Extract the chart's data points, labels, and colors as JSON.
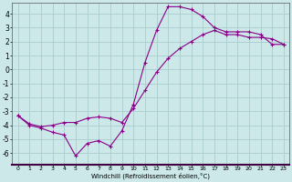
{
  "xlabel": "Windchill (Refroidissement éolien,°C)",
  "background_color": "#cce8e8",
  "grid_color": "#aacccc",
  "line_color": "#880088",
  "line1_x": [
    0,
    1,
    2,
    3,
    4,
    5,
    6,
    7,
    8,
    9,
    10,
    11,
    12,
    13,
    14,
    15,
    16,
    17,
    18,
    19,
    20,
    21,
    22,
    23
  ],
  "line1_y": [
    -3.3,
    -4.0,
    -4.2,
    -4.5,
    -4.7,
    -6.2,
    -5.3,
    -5.1,
    -5.5,
    -4.4,
    -2.5,
    0.5,
    2.8,
    4.5,
    4.5,
    4.3,
    3.8,
    3.0,
    2.7,
    2.7,
    2.7,
    2.5,
    1.8,
    1.8
  ],
  "line2_x": [
    0,
    1,
    2,
    3,
    4,
    5,
    6,
    7,
    8,
    9,
    10,
    11,
    12,
    13,
    14,
    15,
    16,
    17,
    18,
    19,
    20,
    21,
    22,
    23
  ],
  "line2_y": [
    -3.3,
    -3.9,
    -4.1,
    -4.0,
    -3.8,
    -3.8,
    -3.5,
    -3.4,
    -3.5,
    -3.8,
    -2.8,
    -1.5,
    -0.2,
    0.8,
    1.5,
    2.0,
    2.5,
    2.8,
    2.5,
    2.5,
    2.3,
    2.3,
    2.2,
    1.8
  ],
  "xlim": [
    -0.5,
    23.5
  ],
  "ylim": [
    -6.8,
    4.8
  ],
  "yticks": [
    -6,
    -5,
    -4,
    -3,
    -2,
    -1,
    0,
    1,
    2,
    3,
    4
  ],
  "xticks": [
    0,
    1,
    2,
    3,
    4,
    5,
    6,
    7,
    8,
    9,
    10,
    11,
    12,
    13,
    14,
    15,
    16,
    17,
    18,
    19,
    20,
    21,
    22,
    23
  ]
}
